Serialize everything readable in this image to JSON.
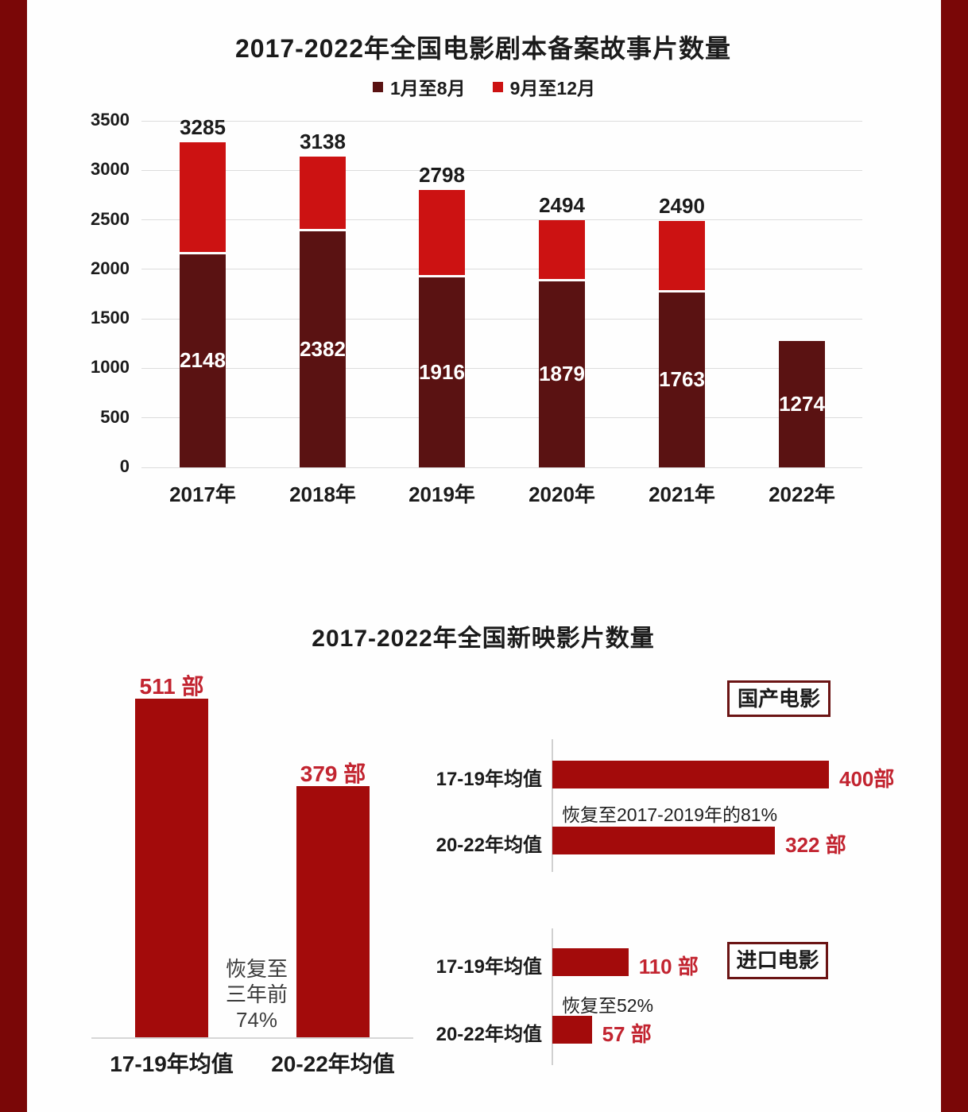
{
  "colors": {
    "side_border": "#7a0707",
    "dark_segment": "#5a1212",
    "bright_segment": "#cc1212",
    "solid_bar": "#a30b0b",
    "value_text": "#c22430",
    "box_border": "#6b1414",
    "grid": "#dcdcdc",
    "inside_label": "#ffffff"
  },
  "chart_data": [
    {
      "type": "bar",
      "stacked": true,
      "title": "2017-2022年全国电影剧本备案故事片数量",
      "categories": [
        "2017年",
        "2018年",
        "2019年",
        "2020年",
        "2021年",
        "2022年"
      ],
      "series": [
        {
          "name": "1月至8月",
          "color": "#5a1212",
          "values": [
            2148,
            2382,
            1916,
            1879,
            1763,
            1274
          ]
        },
        {
          "name": "9月至12月",
          "color": "#cc1212",
          "values": [
            1137,
            756,
            882,
            615,
            727,
            0
          ]
        }
      ],
      "totals": [
        3285,
        3138,
        2798,
        2494,
        2490,
        null
      ],
      "inside_labels": [
        "2148",
        "2382",
        "1916",
        "1879",
        "1763",
        "1274"
      ],
      "ylim": [
        0,
        3500
      ],
      "yticks": [
        0,
        500,
        1000,
        1500,
        2000,
        2500,
        3000,
        3500
      ],
      "grid": true,
      "legend_position": "top"
    },
    {
      "type": "bar",
      "title": "2017-2022年全国新映影片数量",
      "unit": "部",
      "left": {
        "orientation": "vertical",
        "categories": [
          "17-19年均值",
          "20-22年均值"
        ],
        "values": [
          511,
          379
        ],
        "value_labels": [
          "511 部",
          "379 部"
        ],
        "annotation_lines": [
          "恢复至",
          "三年前",
          "74%"
        ]
      },
      "domestic": {
        "box_label": "国产电影",
        "orientation": "horizontal",
        "xmax": 400,
        "rows": [
          {
            "label": "17-19年均值",
            "value": 400,
            "value_label": "400部"
          },
          {
            "label": "20-22年均值",
            "value": 322,
            "value_label": "322 部"
          }
        ],
        "annotation": "恢复至2017-2019年的81%"
      },
      "imported": {
        "box_label": "进口电影",
        "orientation": "horizontal",
        "xmax": 400,
        "rows": [
          {
            "label": "17-19年均值",
            "value": 110,
            "value_label": "110 部"
          },
          {
            "label": "20-22年均值",
            "value": 57,
            "value_label": "57 部"
          }
        ],
        "annotation": "恢复至52%"
      }
    }
  ]
}
